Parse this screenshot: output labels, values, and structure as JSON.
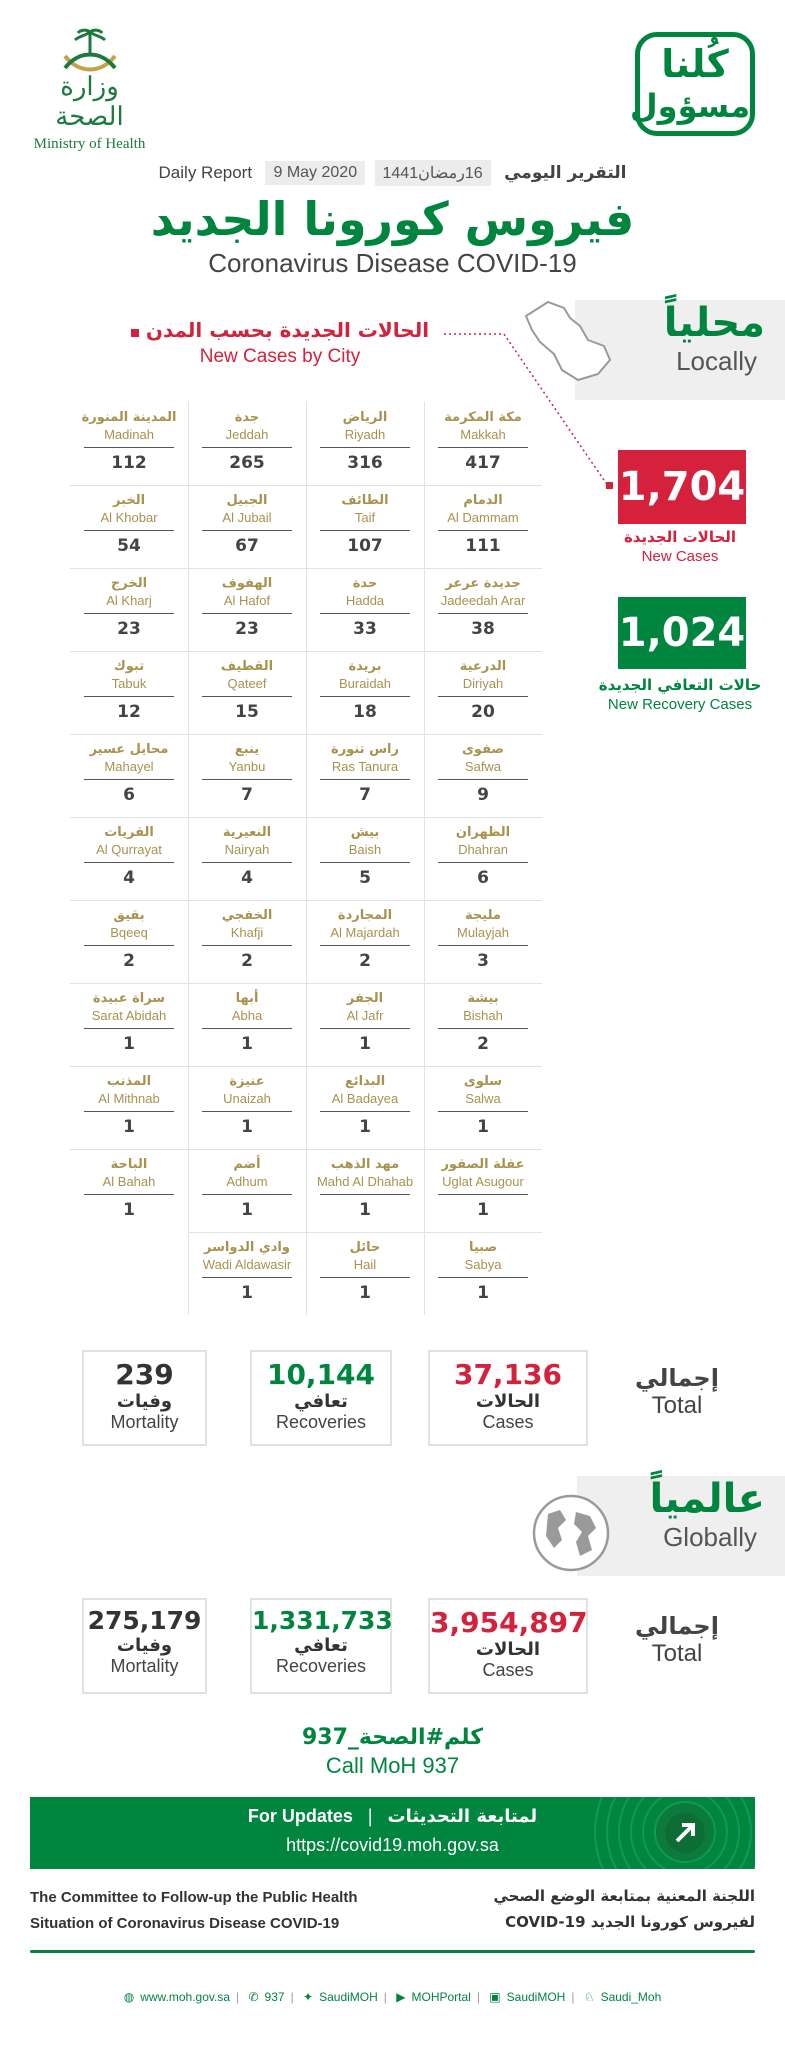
{
  "header": {
    "moh_ar": "وزارة الصحة",
    "moh_en": "Ministry of Health",
    "kollona_l1": "كُلنا",
    "kollona_l2": "مسؤول",
    "daily_report_en": "Daily Report",
    "date_gregorian": "9 May 2020",
    "date_hijri": "16رمضان1441",
    "daily_report_ar": "التقرير اليومي",
    "title_ar": "فيروس كورونا الجديد",
    "title_en": "Coronavirus Disease COVID-19"
  },
  "locally": {
    "label_ar": "محلياً",
    "label_en": "Locally",
    "city_title_ar": "الحالات الجديدة بحسب المدن",
    "city_title_en": "New Cases by City",
    "new_cases": "1,704",
    "new_cases_ar": "الحالات الجديدة",
    "new_cases_en": "New Cases",
    "new_recoveries": "1,024",
    "new_recoveries_ar": "حالات التعافي الجديدة",
    "new_recoveries_en": "New Recovery Cases"
  },
  "cities": [
    {
      "ar": "مكة المكرمة",
      "en": "Makkah",
      "n": "417"
    },
    {
      "ar": "الرياض",
      "en": "Riyadh",
      "n": "316"
    },
    {
      "ar": "جدة",
      "en": "Jeddah",
      "n": "265"
    },
    {
      "ar": "المدينة المنورة",
      "en": "Madinah",
      "n": "112"
    },
    {
      "ar": "الدمام",
      "en": "Al Dammam",
      "n": "111"
    },
    {
      "ar": "الطائف",
      "en": "Taif",
      "n": "107"
    },
    {
      "ar": "الجبيل",
      "en": "Al Jubail",
      "n": "67"
    },
    {
      "ar": "الخبر",
      "en": "Al Khobar",
      "n": "54"
    },
    {
      "ar": "جديدة عرعر",
      "en": "Jadeedah Arar",
      "n": "38"
    },
    {
      "ar": "حدة",
      "en": "Hadda",
      "n": "33"
    },
    {
      "ar": "الهفوف",
      "en": "Al Hafof",
      "n": "23"
    },
    {
      "ar": "الخرج",
      "en": "Al Kharj",
      "n": "23"
    },
    {
      "ar": "الدرعية",
      "en": "Diriyah",
      "n": "20"
    },
    {
      "ar": "بريدة",
      "en": "Buraidah",
      "n": "18"
    },
    {
      "ar": "القطيف",
      "en": "Qateef",
      "n": "15"
    },
    {
      "ar": "تبوك",
      "en": "Tabuk",
      "n": "12"
    },
    {
      "ar": "صفوى",
      "en": "Safwa",
      "n": "9"
    },
    {
      "ar": "راس تنورة",
      "en": "Ras Tanura",
      "n": "7"
    },
    {
      "ar": "ينبع",
      "en": "Yanbu",
      "n": "7"
    },
    {
      "ar": "محايل عسير",
      "en": "Mahayel",
      "n": "6"
    },
    {
      "ar": "الظهران",
      "en": "Dhahran",
      "n": "6"
    },
    {
      "ar": "بيش",
      "en": "Baish",
      "n": "5"
    },
    {
      "ar": "النعيرية",
      "en": "Nairyah",
      "n": "4"
    },
    {
      "ar": "القريات",
      "en": "Al Qurrayat",
      "n": "4"
    },
    {
      "ar": "مليجة",
      "en": "Mulayjah",
      "n": "3"
    },
    {
      "ar": "المجاردة",
      "en": "Al Majardah",
      "n": "2"
    },
    {
      "ar": "الخفجي",
      "en": "Khafji",
      "n": "2"
    },
    {
      "ar": "بقيق",
      "en": "Bqeeq",
      "n": "2"
    },
    {
      "ar": "بيشة",
      "en": "Bishah",
      "n": "2"
    },
    {
      "ar": "الجفر",
      "en": "Al Jafr",
      "n": "1"
    },
    {
      "ar": "أبها",
      "en": "Abha",
      "n": "1"
    },
    {
      "ar": "سراة عبيدة",
      "en": "Sarat Abidah",
      "n": "1"
    },
    {
      "ar": "سلوى",
      "en": "Salwa",
      "n": "1"
    },
    {
      "ar": "البدائع",
      "en": "Al Badayea",
      "n": "1"
    },
    {
      "ar": "عنيزة",
      "en": "Unaizah",
      "n": "1"
    },
    {
      "ar": "المذنب",
      "en": "Al Mithnab",
      "n": "1"
    },
    {
      "ar": "عقلة الصقور",
      "en": "Uglat Asugour",
      "n": "1"
    },
    {
      "ar": "مهد الذهب",
      "en": "Mahd Al Dhahab",
      "n": "1"
    },
    {
      "ar": "أضم",
      "en": "Adhum",
      "n": "1"
    },
    {
      "ar": "الباحة",
      "en": "Al Bahah",
      "n": "1"
    },
    {
      "ar": "صبيا",
      "en": "Sabya",
      "n": "1"
    },
    {
      "ar": "حائل",
      "en": "Hail",
      "n": "1"
    },
    {
      "ar": "وادي الدواسر",
      "en": "Wadi Aldawasir",
      "n": "1"
    }
  ],
  "local_totals": {
    "label_ar": "إجمالي",
    "label_en": "Total",
    "cases": "37,136",
    "cases_ar": "الحالات",
    "cases_en": "Cases",
    "recoveries": "10,144",
    "recoveries_ar": "تعافي",
    "recoveries_en": "Recoveries",
    "mortality": "239",
    "mortality_ar": "وفيات",
    "mortality_en": "Mortality"
  },
  "globally": {
    "label_ar": "عالمياً",
    "label_en": "Globally"
  },
  "global_totals": {
    "label_ar": "إجمالي",
    "label_en": "Total",
    "cases": "3,954,897",
    "cases_ar": "الحالات",
    "cases_en": "Cases",
    "recoveries": "1,331,733",
    "recoveries_ar": "تعافي",
    "recoveries_en": "Recoveries",
    "mortality": "275,179",
    "mortality_ar": "وفيات",
    "mortality_en": "Mortality"
  },
  "call": {
    "ar": "كلم#الصحة_937",
    "en": "Call MoH 937"
  },
  "updates": {
    "en": "For Updates",
    "ar": "لمتابعة التحديثات",
    "url": "https://covid19.moh.gov.sa"
  },
  "committee": {
    "en_l1": "The Committee to Follow-up the Public Health",
    "en_l2": "Situation of Coronavirus Disease COVID-19",
    "ar_l1": "اللجنة المعنية بمتابعة الوضع الصحي",
    "ar_l2": "لفيروس كورونا الجديد COVID-19"
  },
  "socials": [
    "www.moh.gov.sa",
    "937",
    "SaudiMOH",
    "MOHPortal",
    "SaudiMOH",
    "Saudi_Moh"
  ],
  "colors": {
    "green": "#00853f",
    "red": "#d5213c",
    "gold": "#a8924e"
  }
}
